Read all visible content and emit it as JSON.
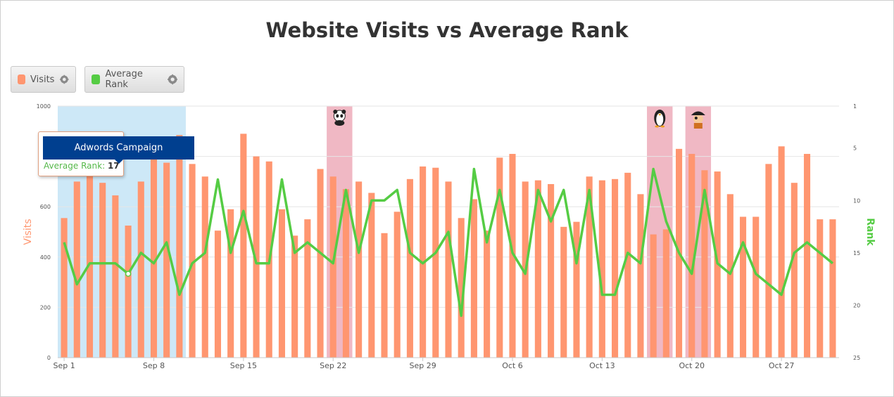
{
  "title": "Website Visits vs Average Rank",
  "legend": [
    {
      "label": "Visits",
      "color": "#ff9670",
      "icon": "gear-icon"
    },
    {
      "label": "Average Rank",
      "color": "#55cc44",
      "icon": "gear-icon"
    }
  ],
  "tooltip": {
    "campaign": "Adwords Campaign",
    "metric_label": "Average Rank:",
    "metric_value": "17"
  },
  "chart_data": {
    "type": "bar",
    "title": "Website Visits vs Average Rank",
    "ylabel": "Visits",
    "y2label": "Rank",
    "ylim": [
      0,
      1000
    ],
    "y2lim": [
      1,
      25
    ],
    "y2_reversed": true,
    "yticks": [
      0,
      200,
      400,
      600,
      800,
      1000
    ],
    "y2ticks": [
      1,
      5,
      10,
      15,
      20,
      25
    ],
    "xticks": [
      "Sep 1",
      "Sep 8",
      "Sep 15",
      "Sep 22",
      "Sep 29",
      "Oct 6",
      "Oct 13",
      "Oct 20",
      "Oct 27"
    ],
    "xtick_indices": [
      0,
      7,
      14,
      21,
      28,
      35,
      42,
      49,
      56
    ],
    "categories": [
      "Sep 1",
      "Sep 2",
      "Sep 3",
      "Sep 4",
      "Sep 5",
      "Sep 6",
      "Sep 7",
      "Sep 8",
      "Sep 9",
      "Sep 10",
      "Sep 11",
      "Sep 12",
      "Sep 13",
      "Sep 14",
      "Sep 15",
      "Sep 16",
      "Sep 17",
      "Sep 18",
      "Sep 19",
      "Sep 20",
      "Sep 21",
      "Sep 22",
      "Sep 23",
      "Sep 24",
      "Sep 25",
      "Sep 26",
      "Sep 27",
      "Sep 28",
      "Sep 29",
      "Sep 30",
      "Oct 1",
      "Oct 2",
      "Oct 3",
      "Oct 4",
      "Oct 5",
      "Oct 6",
      "Oct 7",
      "Oct 8",
      "Oct 9",
      "Oct 10",
      "Oct 11",
      "Oct 12",
      "Oct 13",
      "Oct 14",
      "Oct 15",
      "Oct 16",
      "Oct 17",
      "Oct 18",
      "Oct 19",
      "Oct 20",
      "Oct 21",
      "Oct 22",
      "Oct 23",
      "Oct 24",
      "Oct 25",
      "Oct 26",
      "Oct 27",
      "Oct 28",
      "Oct 29",
      "Oct 30",
      "Oct 31"
    ],
    "series": [
      {
        "name": "Visits",
        "type": "bar",
        "color": "#ff9670",
        "values": [
          555,
          700,
          740,
          695,
          645,
          525,
          700,
          820,
          775,
          885,
          770,
          720,
          505,
          590,
          890,
          800,
          780,
          590,
          485,
          550,
          750,
          720,
          670,
          700,
          655,
          495,
          580,
          710,
          760,
          755,
          700,
          555,
          630,
          505,
          795,
          810,
          700,
          705,
          690,
          520,
          540,
          720,
          705,
          710,
          735,
          650,
          490,
          510,
          830,
          810,
          745,
          740,
          650,
          560,
          560,
          770,
          840,
          695,
          810,
          550,
          550
        ]
      },
      {
        "name": "Average Rank",
        "type": "line",
        "color": "#55cc44",
        "axis": "right",
        "values": [
          14,
          18,
          16,
          16,
          16,
          17,
          15,
          16,
          14,
          19,
          16,
          15,
          8,
          15,
          11,
          16,
          16,
          8,
          15,
          14,
          15,
          16,
          9,
          15,
          10,
          10,
          9,
          15,
          16,
          15,
          13,
          21,
          7,
          14,
          9,
          15,
          17,
          9,
          12,
          9,
          16,
          9,
          19,
          19,
          15,
          16,
          7,
          12,
          15,
          17,
          9,
          16,
          17,
          14,
          17,
          18,
          19,
          15,
          14,
          15,
          16
        ]
      }
    ],
    "bands": [
      {
        "type": "campaign",
        "from": 0,
        "to": 9,
        "color": "#cde8f7",
        "label": "Adwords Campaign"
      },
      {
        "type": "update",
        "from": 21,
        "to": 22,
        "color": "#f0b8c4",
        "icon": "panda-icon"
      },
      {
        "type": "update",
        "from": 46,
        "to": 47,
        "color": "#f0b8c4",
        "icon": "penguin-icon"
      },
      {
        "type": "update",
        "from": 49,
        "to": 50,
        "color": "#f0b8c4",
        "icon": "pirate-icon"
      }
    ],
    "highlight_point": 5
  }
}
